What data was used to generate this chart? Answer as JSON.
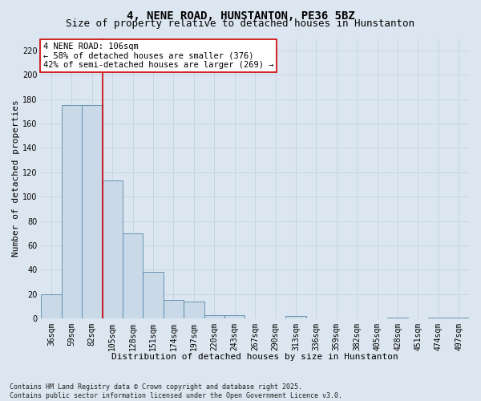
{
  "title1": "4, NENE ROAD, HUNSTANTON, PE36 5BZ",
  "title2": "Size of property relative to detached houses in Hunstanton",
  "xlabel": "Distribution of detached houses by size in Hunstanton",
  "ylabel": "Number of detached properties",
  "categories": [
    "36sqm",
    "59sqm",
    "82sqm",
    "105sqm",
    "128sqm",
    "151sqm",
    "174sqm",
    "197sqm",
    "220sqm",
    "243sqm",
    "267sqm",
    "290sqm",
    "313sqm",
    "336sqm",
    "359sqm",
    "382sqm",
    "405sqm",
    "428sqm",
    "451sqm",
    "474sqm",
    "497sqm"
  ],
  "values": [
    20,
    175,
    175,
    113,
    70,
    38,
    15,
    14,
    3,
    3,
    0,
    0,
    2,
    0,
    0,
    0,
    0,
    1,
    0,
    1,
    1
  ],
  "bar_color": "#c9d9e8",
  "bar_edge_color": "#5588aa",
  "grid_color": "#c8d4e4",
  "bg_color": "#dce6f0",
  "vline_x": 2.5,
  "vline_color": "#cc0000",
  "annotation_line1": "4 NENE ROAD: 106sqm",
  "annotation_line2": "← 58% of detached houses are smaller (376)",
  "annotation_line3": "42% of semi-detached houses are larger (269) →",
  "annotation_box_color": "#ffffff",
  "annotation_box_edge": "#cc0000",
  "ylim": [
    0,
    230
  ],
  "yticks": [
    0,
    20,
    40,
    60,
    80,
    100,
    120,
    140,
    160,
    180,
    200,
    220
  ],
  "footnote": "Contains HM Land Registry data © Crown copyright and database right 2025.\nContains public sector information licensed under the Open Government Licence v3.0.",
  "title1_fontsize": 10,
  "title2_fontsize": 9,
  "xlabel_fontsize": 8,
  "ylabel_fontsize": 8,
  "tick_fontsize": 7,
  "annot_fontsize": 7.5,
  "footnote_fontsize": 6
}
